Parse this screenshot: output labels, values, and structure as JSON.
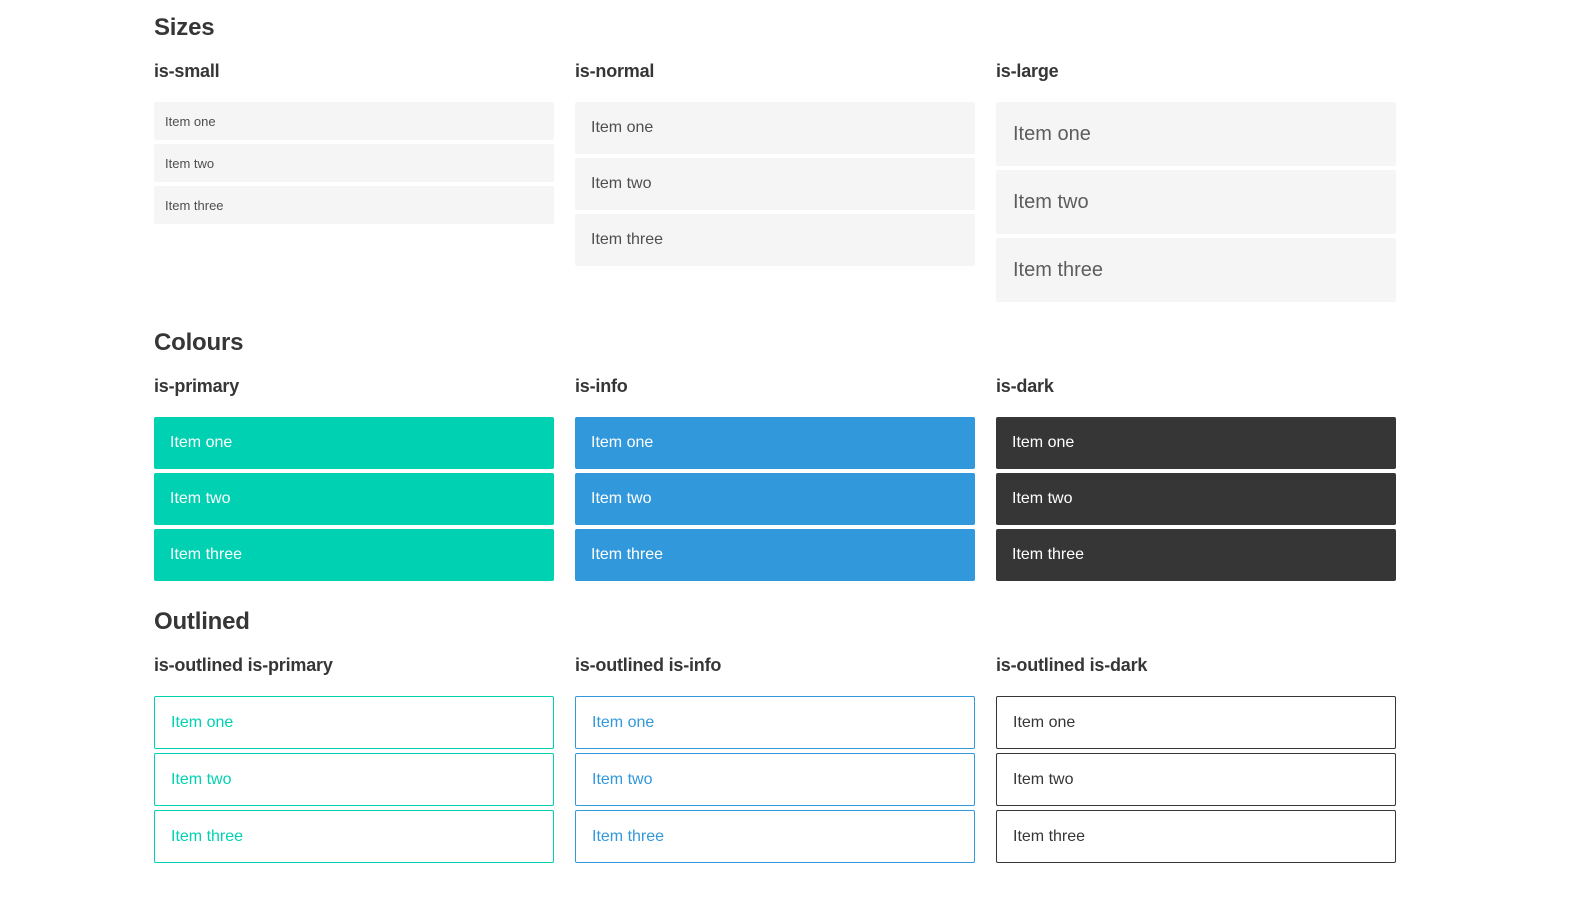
{
  "colors": {
    "primary": "#00d1b2",
    "info": "#3298dc",
    "dark": "#363636",
    "item_bg": "#f5f5f5",
    "item_text": "#4f4f4f",
    "item_text_large": "#5d5d5d",
    "heading_text": "#363636",
    "white": "#ffffff"
  },
  "sections": [
    {
      "title": "Sizes",
      "groups": [
        {
          "label": "is-small",
          "variant": "size-small",
          "items": [
            "Item one",
            "Item two",
            "Item three"
          ]
        },
        {
          "label": "is-normal",
          "variant": "size-normal",
          "items": [
            "Item one",
            "Item two",
            "Item three"
          ]
        },
        {
          "label": "is-large",
          "variant": "size-large",
          "items": [
            "Item one",
            "Item two",
            "Item three"
          ]
        }
      ]
    },
    {
      "title": "Colours",
      "groups": [
        {
          "label": "is-primary",
          "variant": "color-primary",
          "items": [
            "Item one",
            "Item two",
            "Item three"
          ]
        },
        {
          "label": "is-info",
          "variant": "color-info",
          "items": [
            "Item one",
            "Item two",
            "Item three"
          ]
        },
        {
          "label": "is-dark",
          "variant": "color-dark",
          "items": [
            "Item one",
            "Item two",
            "Item three"
          ]
        }
      ]
    },
    {
      "title": "Outlined",
      "groups": [
        {
          "label": "is-outlined is-primary",
          "variant": "outlined-primary",
          "items": [
            "Item one",
            "Item two",
            "Item three"
          ]
        },
        {
          "label": "is-outlined is-info",
          "variant": "outlined-info",
          "items": [
            "Item one",
            "Item two",
            "Item three"
          ]
        },
        {
          "label": "is-outlined is-dark",
          "variant": "outlined-dark",
          "items": [
            "Item one",
            "Item two",
            "Item three"
          ]
        }
      ]
    }
  ]
}
